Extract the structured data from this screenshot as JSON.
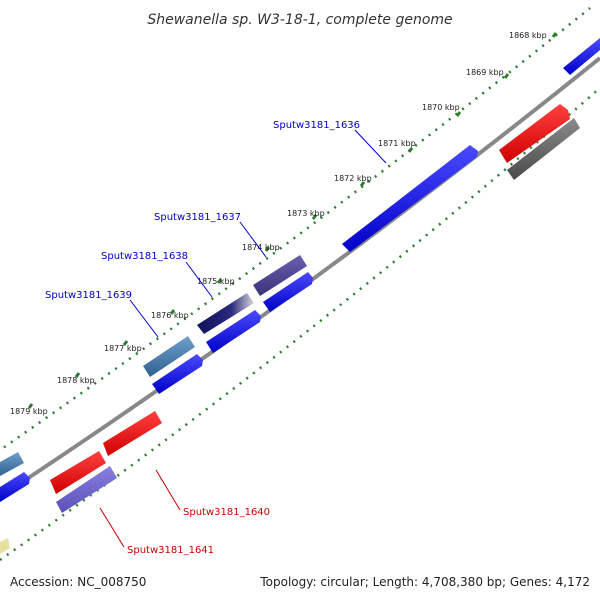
{
  "title": "Shewanella sp. W3-18-1, complete genome",
  "footer": {
    "accession": "Accession: NC_008750",
    "topology": "Topology: circular; Length: 4,708,380 bp; Genes: 4,172"
  },
  "ticks": [
    "1868 kbp",
    "1869 kbp",
    "1870 kbp",
    "1871 kbp",
    "1872 kbp",
    "1873 kbp",
    "1874 kbp",
    "1875 kbp",
    "1876 kbp",
    "1877 kbp",
    "1878 kbp",
    "1879 kbp"
  ],
  "gene_labels": [
    {
      "text": "Sputw3181_1636",
      "strand": "forward"
    },
    {
      "text": "Sputw3181_1637",
      "strand": "forward"
    },
    {
      "text": "Sputw3181_1638",
      "strand": "forward"
    },
    {
      "text": "Sputw3181_1639",
      "strand": "forward"
    },
    {
      "text": "Sputw3181_1640",
      "strand": "reverse"
    },
    {
      "text": "Sputw3181_1641",
      "strand": "reverse"
    }
  ],
  "colors": {
    "forward_label": "#0000cc",
    "reverse_label": "#cc0000",
    "backbone": "#888888",
    "tick_marks": "#2e7d2e"
  }
}
